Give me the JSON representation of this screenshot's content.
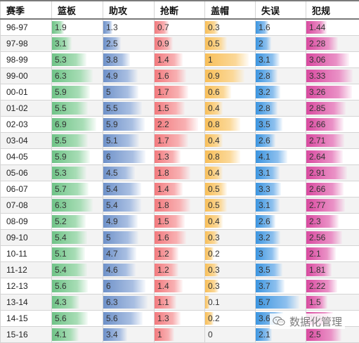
{
  "headers": [
    "赛季",
    "篮板",
    "助攻",
    "抢断",
    "盖帽",
    "失误",
    "犯规"
  ],
  "rows": [
    {
      "season": "96-97",
      "rebounds": "1.9",
      "assists": "1.3",
      "steals": "0.7",
      "blocks": "0.3",
      "turnovers": "1.6",
      "fouls": "1.44"
    },
    {
      "season": "97-98",
      "rebounds": "3.1",
      "assists": "2.5",
      "steals": "0.9",
      "blocks": "0.5",
      "turnovers": "2",
      "fouls": "2.28"
    },
    {
      "season": "98-99",
      "rebounds": "5.3",
      "assists": "3.8",
      "steals": "1.4",
      "blocks": "1",
      "turnovers": "3.1",
      "fouls": "3.06"
    },
    {
      "season": "99-00",
      "rebounds": "6.3",
      "assists": "4.9",
      "steals": "1.6",
      "blocks": "0.9",
      "turnovers": "2.8",
      "fouls": "3.33"
    },
    {
      "season": "00-01",
      "rebounds": "5.9",
      "assists": "5",
      "steals": "1.7",
      "blocks": "0.6",
      "turnovers": "3.2",
      "fouls": "3.26"
    },
    {
      "season": "01-02",
      "rebounds": "5.5",
      "assists": "5.5",
      "steals": "1.5",
      "blocks": "0.4",
      "turnovers": "2.8",
      "fouls": "2.85"
    },
    {
      "season": "02-03",
      "rebounds": "6.9",
      "assists": "5.9",
      "steals": "2.2",
      "blocks": "0.8",
      "turnovers": "3.5",
      "fouls": "2.66"
    },
    {
      "season": "03-04",
      "rebounds": "5.5",
      "assists": "5.1",
      "steals": "1.7",
      "blocks": "0.4",
      "turnovers": "2.6",
      "fouls": "2.71"
    },
    {
      "season": "04-05",
      "rebounds": "5.9",
      "assists": "6",
      "steals": "1.3",
      "blocks": "0.8",
      "turnovers": "4.1",
      "fouls": "2.64"
    },
    {
      "season": "05-06",
      "rebounds": "5.3",
      "assists": "4.5",
      "steals": "1.8",
      "blocks": "0.4",
      "turnovers": "3.1",
      "fouls": "2.91"
    },
    {
      "season": "06-07",
      "rebounds": "5.7",
      "assists": "5.4",
      "steals": "1.4",
      "blocks": "0.5",
      "turnovers": "3.3",
      "fouls": "2.66"
    },
    {
      "season": "07-08",
      "rebounds": "6.3",
      "assists": "5.4",
      "steals": "1.8",
      "blocks": "0.5",
      "turnovers": "3.1",
      "fouls": "2.77"
    },
    {
      "season": "08-09",
      "rebounds": "5.2",
      "assists": "4.9",
      "steals": "1.5",
      "blocks": "0.4",
      "turnovers": "2.6",
      "fouls": "2.3"
    },
    {
      "season": "09-10",
      "rebounds": "5.4",
      "assists": "5",
      "steals": "1.6",
      "blocks": "0.3",
      "turnovers": "3.2",
      "fouls": "2.56"
    },
    {
      "season": "10-11",
      "rebounds": "5.1",
      "assists": "4.7",
      "steals": "1.2",
      "blocks": "0.2",
      "turnovers": "3",
      "fouls": "2.1"
    },
    {
      "season": "11-12",
      "rebounds": "5.4",
      "assists": "4.6",
      "steals": "1.2",
      "blocks": "0.3",
      "turnovers": "3.5",
      "fouls": "1.81"
    },
    {
      "season": "12-13",
      "rebounds": "5.6",
      "assists": "6",
      "steals": "1.4",
      "blocks": "0.3",
      "turnovers": "3.7",
      "fouls": "2.22"
    },
    {
      "season": "13-14",
      "rebounds": "4.3",
      "assists": "6.3",
      "steals": "1.1",
      "blocks": "0.1",
      "turnovers": "5.7",
      "fouls": "1.5"
    },
    {
      "season": "14-15",
      "rebounds": "5.6",
      "assists": "5.6",
      "steals": "1.3",
      "blocks": "0.2",
      "turnovers": "3.6",
      "fouls": "1.9"
    },
    {
      "season": "15-16",
      "rebounds": "4.1",
      "assists": "3.4",
      "steals": "1",
      "blocks": "0",
      "turnovers": "2.1",
      "fouls": "2.5"
    }
  ],
  "column_max": {
    "rebounds": 6.9,
    "assists": 6.3,
    "steals": 2.2,
    "blocks": 1,
    "turnovers": 5.7,
    "fouls": 3.33
  },
  "colors": {
    "rebounds": "#6fc387",
    "assists": "#6e91c9",
    "steals": "#f27a7e",
    "blocks": "#f8bf59",
    "turnovers": "#3c95e0",
    "fouls": "#d94aa0"
  },
  "watermark": {
    "icon": "wechat-icon",
    "text": "数据化管理"
  }
}
